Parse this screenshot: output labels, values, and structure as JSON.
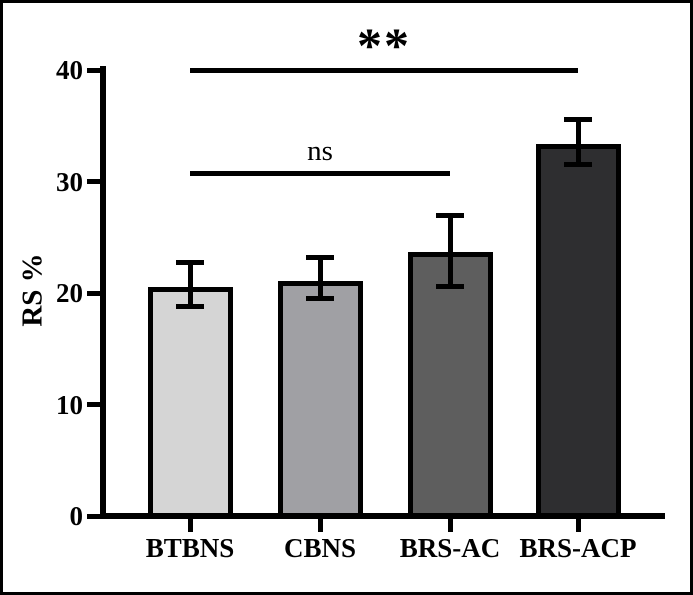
{
  "chart_data": {
    "type": "bar",
    "title": "",
    "xlabel": "",
    "ylabel": "RS %",
    "categories": [
      "BTBNS",
      "CBNS",
      "BRS-AC",
      "BRS-ACP"
    ],
    "values": [
      20.5,
      21.1,
      23.7,
      33.4
    ],
    "error_upper": [
      23.0,
      23.4,
      27.2,
      35.8
    ],
    "error_lower": [
      18.6,
      19.3,
      20.4,
      31.3
    ],
    "bar_fill_colors": [
      "#d5d5d5",
      "#a0a0a4",
      "#5e5e5e",
      "#2e2e30"
    ],
    "bar_edge_color": "#000000",
    "axis_color": "#000000",
    "ylim": [
      0,
      40
    ],
    "yticks": [
      0,
      10,
      20,
      30,
      40
    ],
    "grid": false,
    "legend": null,
    "annotations": [
      {
        "label": "ns",
        "style": "plain",
        "from": "BTBNS",
        "to": "BRS-AC",
        "y": 30.8
      },
      {
        "label": "**",
        "style": "stars",
        "from": "BTBNS",
        "to": "BRS-ACP",
        "y": 40
      }
    ]
  }
}
